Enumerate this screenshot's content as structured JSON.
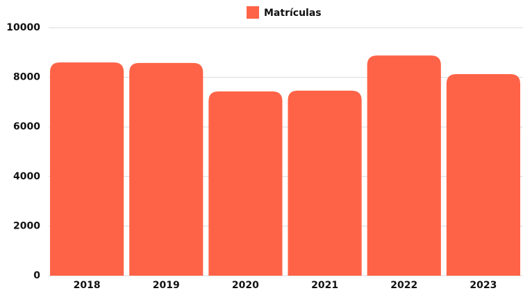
{
  "chart_data": {
    "type": "bar",
    "legend": "top",
    "series": [
      {
        "name": "Matrículas",
        "color": "#ff6347",
        "values": [
          8600,
          8580,
          7430,
          7460,
          8880,
          8130
        ]
      }
    ],
    "categories": [
      "2018",
      "2019",
      "2020",
      "2021",
      "2022",
      "2023"
    ],
    "ylim": [
      0,
      10000
    ],
    "yticks": [
      0,
      2000,
      4000,
      6000,
      8000,
      10000
    ],
    "grid": true
  }
}
